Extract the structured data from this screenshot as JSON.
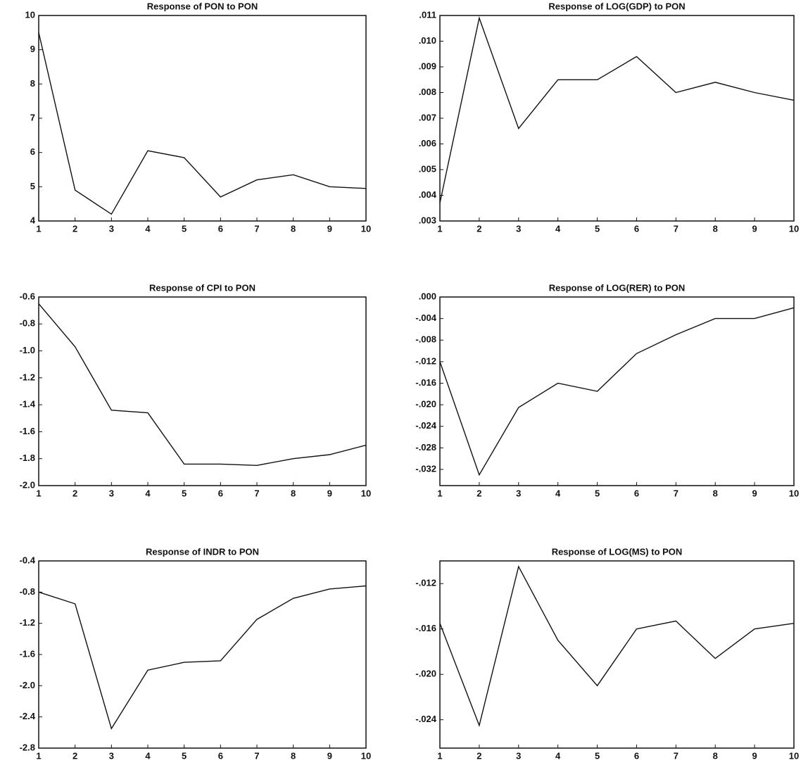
{
  "chart_data": [
    {
      "type": "line",
      "title": "Response of PON to PON",
      "color": "#111111",
      "x": [
        1,
        2,
        3,
        4,
        5,
        6,
        7,
        8,
        9,
        10
      ],
      "xlim": [
        1,
        10
      ],
      "xticks": [
        1,
        2,
        3,
        4,
        5,
        6,
        7,
        8,
        9,
        10
      ],
      "values": [
        9.5,
        4.9,
        4.2,
        6.05,
        5.85,
        4.7,
        5.2,
        5.35,
        5.0,
        4.95
      ],
      "ylim": [
        4,
        10
      ],
      "yticks": [
        4,
        5,
        6,
        7,
        8,
        9,
        10
      ]
    },
    {
      "type": "line",
      "title": "Response of LOG(GDP) to PON",
      "color": "#111111",
      "x": [
        1,
        2,
        3,
        4,
        5,
        6,
        7,
        8,
        9,
        10
      ],
      "xlim": [
        1,
        10
      ],
      "xticks": [
        1,
        2,
        3,
        4,
        5,
        6,
        7,
        8,
        9,
        10
      ],
      "values": [
        0.0037,
        0.0109,
        0.0066,
        0.0085,
        0.0085,
        0.0094,
        0.008,
        0.0084,
        0.008,
        0.0077
      ],
      "ylim": [
        0.003,
        0.011
      ],
      "yticks": [
        {
          "value": 0.003,
          "label": ".003"
        },
        {
          "value": 0.004,
          "label": ".004"
        },
        {
          "value": 0.005,
          "label": ".005"
        },
        {
          "value": 0.006,
          "label": ".006"
        },
        {
          "value": 0.007,
          "label": ".007"
        },
        {
          "value": 0.008,
          "label": ".008"
        },
        {
          "value": 0.009,
          "label": ".009"
        },
        {
          "value": 0.01,
          "label": ".010"
        },
        {
          "value": 0.011,
          "label": ".011"
        }
      ]
    },
    {
      "type": "line",
      "title": "Response of CPI to PON",
      "color": "#111111",
      "x": [
        1,
        2,
        3,
        4,
        5,
        6,
        7,
        8,
        9,
        10
      ],
      "xlim": [
        1,
        10
      ],
      "xticks": [
        1,
        2,
        3,
        4,
        5,
        6,
        7,
        8,
        9,
        10
      ],
      "values": [
        -0.65,
        -0.97,
        -1.44,
        -1.46,
        -1.84,
        -1.84,
        -1.85,
        -1.8,
        -1.77,
        -1.7
      ],
      "ylim": [
        -2.0,
        -0.6
      ],
      "yticks": [
        {
          "value": -2.0,
          "label": "-2.0"
        },
        -1.8,
        -1.6,
        -1.4,
        -1.2,
        {
          "value": -1.0,
          "label": "-1.0"
        },
        -0.8,
        -0.6
      ]
    },
    {
      "type": "line",
      "title": "Response of LOG(RER) to PON",
      "color": "#111111",
      "x": [
        1,
        2,
        3,
        4,
        5,
        6,
        7,
        8,
        9,
        10
      ],
      "xlim": [
        1,
        10
      ],
      "xticks": [
        1,
        2,
        3,
        4,
        5,
        6,
        7,
        8,
        9,
        10
      ],
      "values": [
        -0.012,
        -0.033,
        -0.0205,
        -0.016,
        -0.0175,
        -0.0105,
        -0.007,
        -0.004,
        -0.004,
        -0.002
      ],
      "ylim": [
        -0.035,
        0.0
      ],
      "yticks": [
        {
          "value": -0.032,
          "label": "-.032"
        },
        {
          "value": -0.028,
          "label": "-.028"
        },
        {
          "value": -0.024,
          "label": "-.024"
        },
        {
          "value": -0.02,
          "label": "-.020"
        },
        {
          "value": -0.016,
          "label": "-.016"
        },
        {
          "value": -0.012,
          "label": "-.012"
        },
        {
          "value": -0.008,
          "label": "-.008"
        },
        {
          "value": -0.004,
          "label": "-.004"
        },
        {
          "value": 0.0,
          "label": ".000"
        }
      ]
    },
    {
      "type": "line",
      "title": "Response of INDR to PON",
      "color": "#111111",
      "x": [
        1,
        2,
        3,
        4,
        5,
        6,
        7,
        8,
        9,
        10
      ],
      "xlim": [
        1,
        10
      ],
      "xticks": [
        1,
        2,
        3,
        4,
        5,
        6,
        7,
        8,
        9,
        10
      ],
      "values": [
        -0.8,
        -0.95,
        -2.55,
        -1.8,
        -1.7,
        -1.68,
        -1.15,
        -0.88,
        -0.76,
        -0.72
      ],
      "ylim": [
        -2.8,
        -0.4
      ],
      "yticks": [
        -2.8,
        -2.4,
        {
          "value": -2.0,
          "label": "-2.0"
        },
        -1.6,
        -1.2,
        -0.8,
        -0.4
      ]
    },
    {
      "type": "line",
      "title": "Response of LOG(MS) to PON",
      "color": "#111111",
      "x": [
        1,
        2,
        3,
        4,
        5,
        6,
        7,
        8,
        9,
        10
      ],
      "xlim": [
        1,
        10
      ],
      "xticks": [
        1,
        2,
        3,
        4,
        5,
        6,
        7,
        8,
        9,
        10
      ],
      "values": [
        -0.0155,
        -0.0245,
        -0.0105,
        -0.017,
        -0.021,
        -0.016,
        -0.0153,
        -0.0186,
        -0.016,
        -0.0155
      ],
      "ylim": [
        -0.0265,
        -0.01
      ],
      "yticks": [
        {
          "value": -0.024,
          "label": "-.024"
        },
        {
          "value": -0.02,
          "label": "-.020"
        },
        {
          "value": -0.016,
          "label": "-.016"
        },
        {
          "value": -0.012,
          "label": "-.012"
        }
      ]
    }
  ]
}
